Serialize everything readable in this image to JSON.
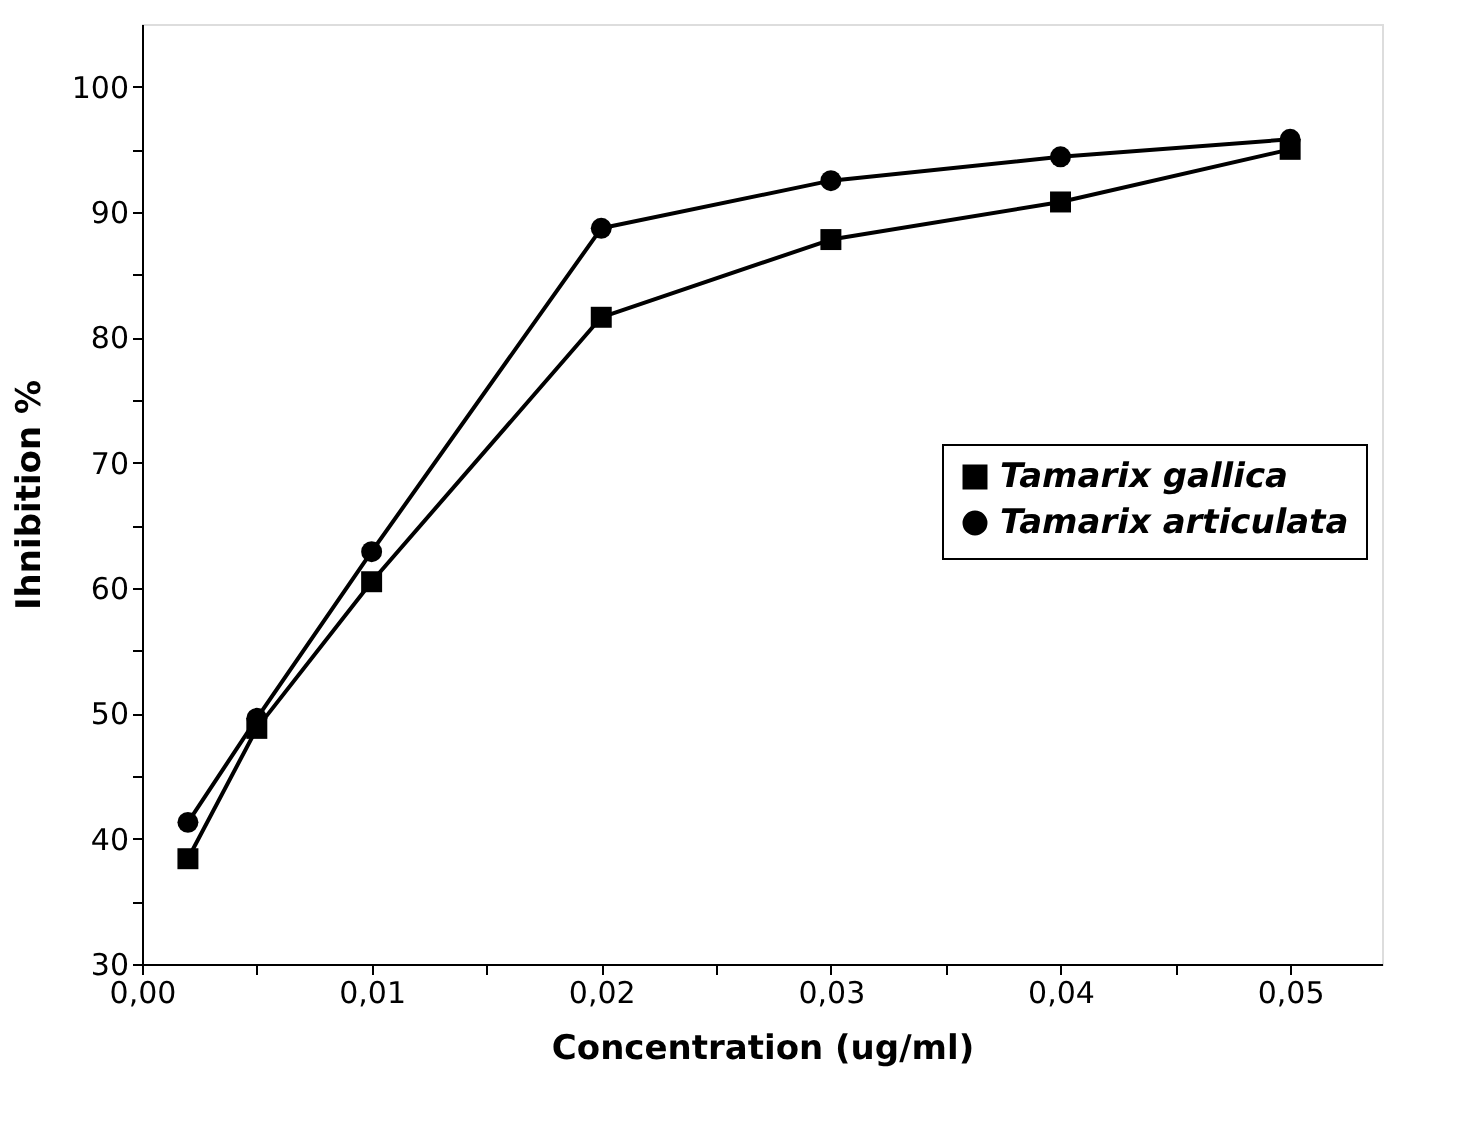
{
  "chart_data": {
    "type": "line",
    "xlabel": "Concentration (ug/ml)",
    "ylabel": "Ihnibition %",
    "x": [
      0.002,
      0.005,
      0.01,
      0.02,
      0.03,
      0.04,
      0.05
    ],
    "series": [
      {
        "name": "Tamarix gallica",
        "color": "#000000",
        "marker": "square",
        "values": [
          38.4,
          48.8,
          60.5,
          81.6,
          87.8,
          90.8,
          95.0
        ]
      },
      {
        "name": "Tamarix articulata",
        "color": "#000000",
        "marker": "circle",
        "values": [
          41.3,
          49.6,
          62.9,
          88.7,
          92.5,
          94.4,
          95.8
        ]
      }
    ],
    "xlim": [
      0,
      0.054
    ],
    "ylim": [
      30,
      105
    ],
    "xticks": [
      {
        "value": 0,
        "label": "0,00"
      },
      {
        "value": 0.005,
        "label": null
      },
      {
        "value": 0.01,
        "label": "0,01"
      },
      {
        "value": 0.015,
        "label": null
      },
      {
        "value": 0.02,
        "label": "0,02"
      },
      {
        "value": 0.025,
        "label": null
      },
      {
        "value": 0.03,
        "label": "0,03"
      },
      {
        "value": 0.035,
        "label": null
      },
      {
        "value": 0.04,
        "label": "0,04"
      },
      {
        "value": 0.045,
        "label": null
      },
      {
        "value": 0.05,
        "label": "0,05"
      }
    ],
    "yticks": [
      30,
      {
        "value": 35,
        "label": null
      },
      40,
      {
        "value": 45,
        "label": null
      },
      50,
      {
        "value": 55,
        "label": null
      },
      60,
      {
        "value": 65,
        "label": null
      },
      70,
      {
        "value": 75,
        "label": null
      },
      80,
      {
        "value": 85,
        "label": null
      },
      90,
      {
        "value": 95,
        "label": null
      },
      100
    ],
    "grid": false,
    "legend": "right",
    "line_style": "solid"
  }
}
